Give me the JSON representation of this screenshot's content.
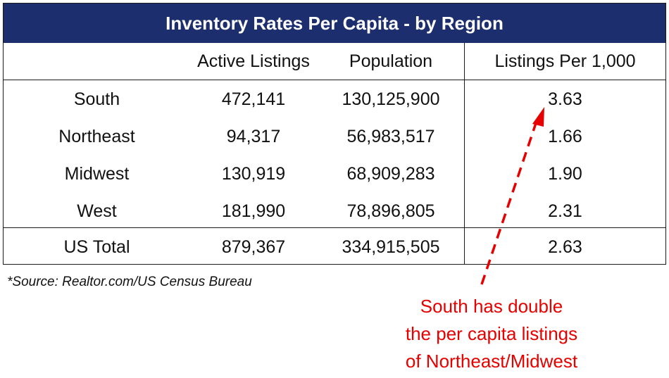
{
  "table": {
    "title": "Inventory Rates Per Capita - by Region",
    "headers": [
      "",
      "Active Listings",
      "Population",
      "Listings Per 1,000"
    ],
    "rows": [
      {
        "region": "South",
        "listings": "472,141",
        "population": "130,125,900",
        "per_1000": "3.63"
      },
      {
        "region": "Northeast",
        "listings": "94,317",
        "population": "56,983,517",
        "per_1000": "1.66"
      },
      {
        "region": "Midwest",
        "listings": "130,919",
        "population": "68,909,283",
        "per_1000": "1.90"
      },
      {
        "region": "West",
        "listings": "181,990",
        "population": "78,896,805",
        "per_1000": "2.31"
      }
    ],
    "total": {
      "region": "US Total",
      "listings": "879,367",
      "population": "334,915,505",
      "per_1000": "2.63"
    }
  },
  "source_note": "*Source: Realtor.com/US Census Bureau",
  "annotation": {
    "lines": [
      "South has double",
      "the per capita listings",
      "of Northeast/Midwest"
    ],
    "color": "#e60000"
  },
  "colors": {
    "title_bg": "#1d2e6e",
    "title_text": "#ffffff",
    "annotation": "#e60000"
  },
  "chart_data": {
    "type": "table",
    "title": "Inventory Rates Per Capita - by Region",
    "columns": [
      "Active Listings",
      "Population",
      "Listings Per 1,000"
    ],
    "categories": [
      "South",
      "Northeast",
      "Midwest",
      "West",
      "US Total"
    ],
    "series": [
      {
        "name": "Active Listings",
        "values": [
          472141,
          94317,
          130919,
          181990,
          879367
        ]
      },
      {
        "name": "Population",
        "values": [
          130125900,
          56983517,
          68909283,
          78896805,
          334915505
        ]
      },
      {
        "name": "Listings Per 1,000",
        "values": [
          3.63,
          1.66,
          1.9,
          2.31,
          2.63
        ]
      }
    ]
  }
}
